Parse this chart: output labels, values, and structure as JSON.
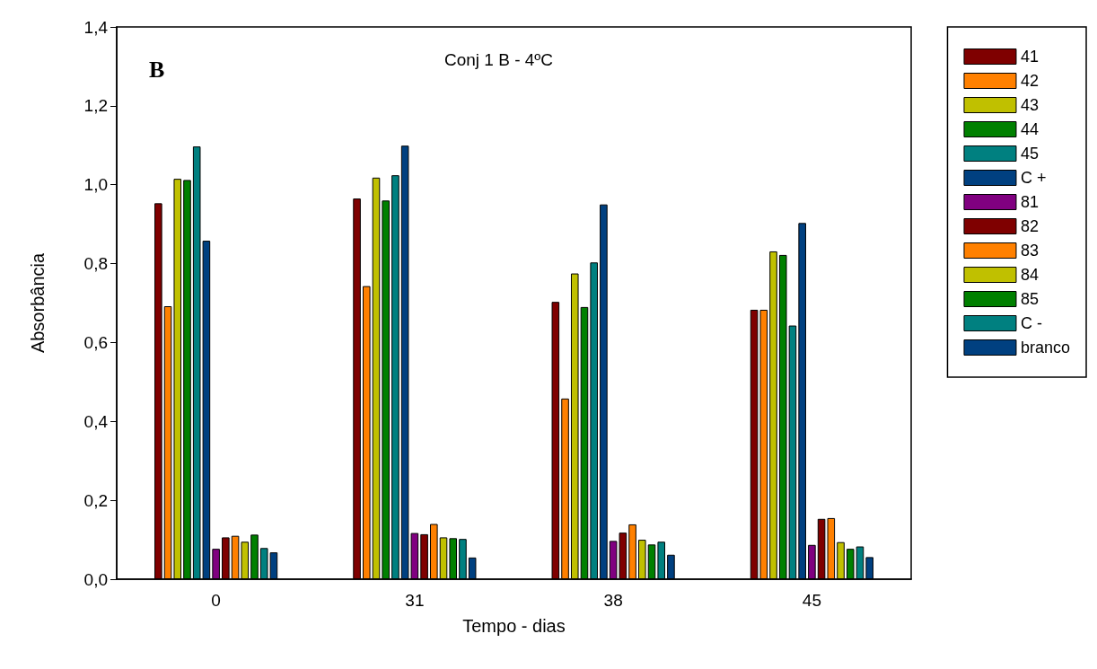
{
  "chart_data": {
    "type": "bar",
    "title": "Conj 1 B - 4ºC",
    "xlabel": "Tempo - dias",
    "ylabel": "Absorbância",
    "annotations": [
      "B"
    ],
    "categories": [
      "0",
      "31",
      "38",
      "45"
    ],
    "series": [
      {
        "name": "41",
        "color": "#7f0000",
        "values": [
          0.953,
          0.965,
          0.703,
          0.683
        ]
      },
      {
        "name": "42",
        "color": "#ff8000",
        "values": [
          0.692,
          0.743,
          0.458,
          0.683
        ]
      },
      {
        "name": "43",
        "color": "#c0c000",
        "values": [
          1.015,
          1.018,
          0.775,
          0.831
        ]
      },
      {
        "name": "44",
        "color": "#008000",
        "values": [
          1.012,
          0.96,
          0.69,
          0.822
        ]
      },
      {
        "name": "45",
        "color": "#008080",
        "values": [
          1.097,
          1.024,
          0.803,
          0.643
        ]
      },
      {
        "name": "C +",
        "color": "#004080",
        "values": [
          0.858,
          1.099,
          0.95,
          0.903
        ]
      },
      {
        "name": "81",
        "color": "#800080",
        "values": [
          0.077,
          0.117,
          0.097,
          0.087
        ]
      },
      {
        "name": "82",
        "color": "#7f0000",
        "values": [
          0.106,
          0.114,
          0.118,
          0.153
        ]
      },
      {
        "name": "83",
        "color": "#ff8000",
        "values": [
          0.11,
          0.14,
          0.139,
          0.155
        ]
      },
      {
        "name": "84",
        "color": "#c0c000",
        "values": [
          0.095,
          0.106,
          0.1,
          0.094
        ]
      },
      {
        "name": "85",
        "color": "#008000",
        "values": [
          0.113,
          0.104,
          0.088,
          0.077
        ]
      },
      {
        "name": "C -",
        "color": "#008080",
        "values": [
          0.079,
          0.102,
          0.095,
          0.083
        ]
      },
      {
        "name": "branco",
        "color": "#004080",
        "values": [
          0.068,
          0.055,
          0.062,
          0.056
        ]
      }
    ],
    "ylim": [
      0,
      1.4
    ],
    "yticks": [
      {
        "value": 0,
        "label": "0,0"
      },
      {
        "value": 0.2,
        "label": "0,2"
      },
      {
        "value": 0.4,
        "label": "0,4"
      },
      {
        "value": 0.6,
        "label": "0,6"
      },
      {
        "value": 0.8,
        "label": "0,8"
      },
      {
        "value": 1.0,
        "label": "1,0"
      },
      {
        "value": 1.2,
        "label": "1,2"
      },
      {
        "value": 1.4,
        "label": "1,4"
      }
    ],
    "grid": false,
    "legend": "right"
  }
}
